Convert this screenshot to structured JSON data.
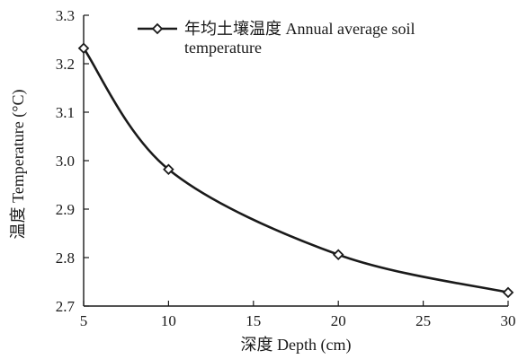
{
  "chart_data": {
    "type": "line",
    "x": [
      5,
      10,
      20,
      30
    ],
    "series": [
      {
        "name": "年均土壤温度 Annual average soil temperature",
        "name_lines": [
          "年均土壤温度 Annual average soil",
          "temperature"
        ],
        "values": [
          3.232,
          2.982,
          2.806,
          2.728
        ],
        "marker": "diamond"
      }
    ],
    "xlabel": "深度 Depth (cm)",
    "ylabel": "温度 Temperature (°C)",
    "xlim": [
      5,
      30
    ],
    "ylim": [
      2.7,
      3.3
    ],
    "xticks": [
      "5",
      "10",
      "15",
      "20",
      "25",
      "30"
    ],
    "yticks": [
      "2.7",
      "2.8",
      "2.9",
      "3.0",
      "3.1",
      "3.2",
      "3.3"
    ],
    "grid": false,
    "legend_position": "top-right",
    "line_color": "#1a1a1a"
  }
}
